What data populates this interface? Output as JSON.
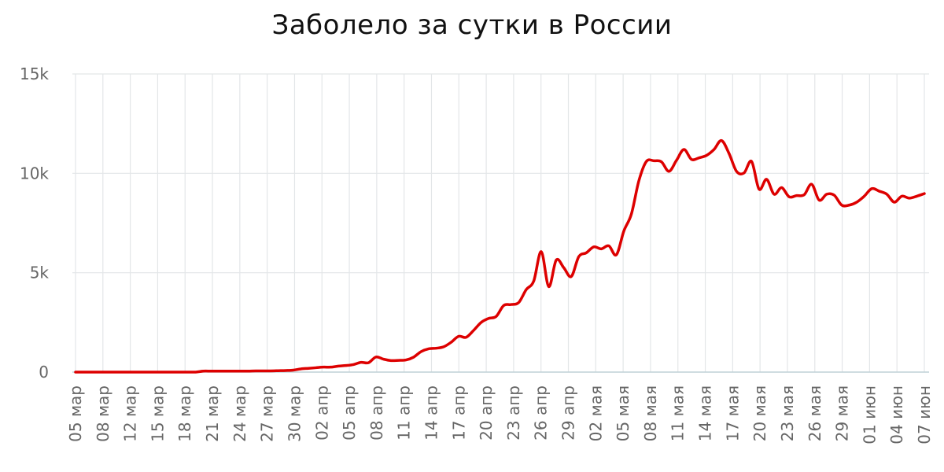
{
  "chart_data": {
    "type": "line",
    "title": "Заболело за сутки в России",
    "xlabel": "",
    "ylabel": "",
    "ylim": [
      0,
      15000
    ],
    "y_ticks": [
      {
        "value": 0,
        "label": "0"
      },
      {
        "value": 5000,
        "label": "5k"
      },
      {
        "value": 10000,
        "label": "10k"
      },
      {
        "value": 15000,
        "label": "15k"
      }
    ],
    "x_tick_labels": [
      "05 мар",
      "08 мар",
      "12 мар",
      "15 мар",
      "18 мар",
      "21 мар",
      "24 мар",
      "27 мар",
      "30 мар",
      "02 апр",
      "05 апр",
      "08 апр",
      "11 апр",
      "14 апр",
      "17 апр",
      "20 апр",
      "23 апр",
      "26 апр",
      "29 апр",
      "02 мая",
      "05 мая",
      "08 мая",
      "11 мая",
      "14 мая",
      "17 мая",
      "20 мая",
      "23 мая",
      "26 мая",
      "29 мая",
      "01 июн",
      "04 июн",
      "07 июн"
    ],
    "grid": true,
    "line_color": "#dd0000",
    "series": [
      {
        "values": [
          0,
          0,
          0,
          0,
          0,
          0,
          0,
          0,
          0,
          0,
          0,
          0,
          0,
          0,
          0,
          0,
          0,
          50,
          50,
          50,
          50,
          50,
          50,
          50,
          60,
          60,
          60,
          70,
          80,
          100,
          160,
          190,
          220,
          250,
          250,
          300,
          330,
          380,
          490,
          470,
          760,
          650,
          580,
          590,
          610,
          750,
          1030,
          1170,
          1200,
          1270,
          1500,
          1800,
          1750,
          2100,
          2500,
          2700,
          2800,
          3350,
          3400,
          3500,
          4150,
          4580,
          6060,
          4300,
          5640,
          5250,
          4810,
          5810,
          6000,
          6300,
          6200,
          6350,
          5900,
          7100,
          7950,
          9630,
          10600,
          10630,
          10580,
          10100,
          10650,
          11200,
          10700,
          10780,
          10900,
          11200,
          11650,
          11000,
          10100,
          10020,
          10600,
          9200,
          9700,
          8950,
          9280,
          8820,
          8880,
          8920,
          9450,
          8650,
          8950,
          8900,
          8400,
          8400,
          8550,
          8850,
          9230,
          9100,
          8950,
          8550,
          8850,
          8750,
          8850,
          8980
        ]
      }
    ]
  }
}
